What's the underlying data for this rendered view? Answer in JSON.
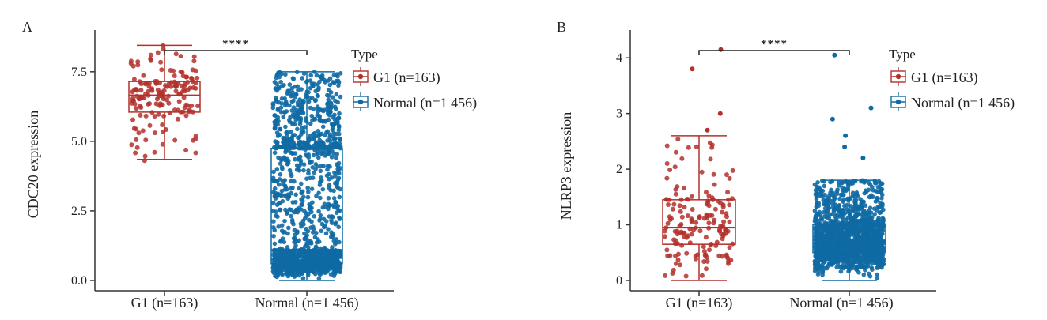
{
  "colors": {
    "g1": "#b3302b",
    "normal": "#0f6aa4",
    "axis": "#333333"
  },
  "chart_data": [
    {
      "panel": "A",
      "type": "box",
      "ylabel": "CDC20 expression",
      "ylim": [
        -0.2,
        9.0
      ],
      "yticks": [
        0.0,
        2.5,
        5.0,
        7.5
      ],
      "ytick_labels": [
        "0.0",
        "2.5",
        "5.0",
        "7.5"
      ],
      "categories": [
        "G1 (n=163)",
        "Normal (n=1 456)"
      ],
      "legend": {
        "title": "Type",
        "placement": "right",
        "entries": [
          "G1 (n=163)",
          "Normal (n=1 456)"
        ]
      },
      "significance": "****",
      "series": [
        {
          "name": "G1 (n=163)",
          "n": 163,
          "box": {
            "lower_whisker": 4.35,
            "q1": 6.05,
            "median": 6.65,
            "q3": 7.15,
            "upper_whisker": 8.45
          },
          "point_range": [
            4.0,
            8.45
          ]
        },
        {
          "name": "Normal (n=1 456)",
          "n": 1456,
          "box": {
            "lower_whisker": 0.0,
            "q1": 0.6,
            "median": 1.1,
            "q3": 4.75,
            "upper_whisker": 7.5
          },
          "point_range": [
            0.0,
            7.5
          ]
        }
      ]
    },
    {
      "panel": "B",
      "type": "box",
      "ylabel": "NLRP3 expression",
      "ylim": [
        -0.1,
        4.5
      ],
      "yticks": [
        0,
        1,
        2,
        3,
        4
      ],
      "ytick_labels": [
        "0",
        "1",
        "2",
        "3",
        "4"
      ],
      "categories": [
        "G1 (n=163)",
        "Normal (n=1 456)"
      ],
      "legend": {
        "title": "Type",
        "placement": "right",
        "entries": [
          "G1 (n=163)",
          "Normal (n=1 456)"
        ]
      },
      "significance": "****",
      "series": [
        {
          "name": "G1 (n=163)",
          "n": 163,
          "box": {
            "lower_whisker": 0.0,
            "q1": 0.65,
            "median": 0.95,
            "q3": 1.45,
            "upper_whisker": 2.6
          },
          "outliers": [
            2.7,
            3.0,
            3.8,
            4.15
          ],
          "point_range": [
            0.0,
            2.6
          ]
        },
        {
          "name": "Normal (n=1 456)",
          "n": 1456,
          "box": {
            "lower_whisker": 0.0,
            "q1": 0.5,
            "median": 0.72,
            "q3": 1.0,
            "upper_whisker": 1.8
          },
          "outliers": [
            2.2,
            2.4,
            2.6,
            2.9,
            3.1,
            4.05
          ],
          "point_range": [
            0.0,
            1.8
          ]
        }
      ]
    }
  ]
}
